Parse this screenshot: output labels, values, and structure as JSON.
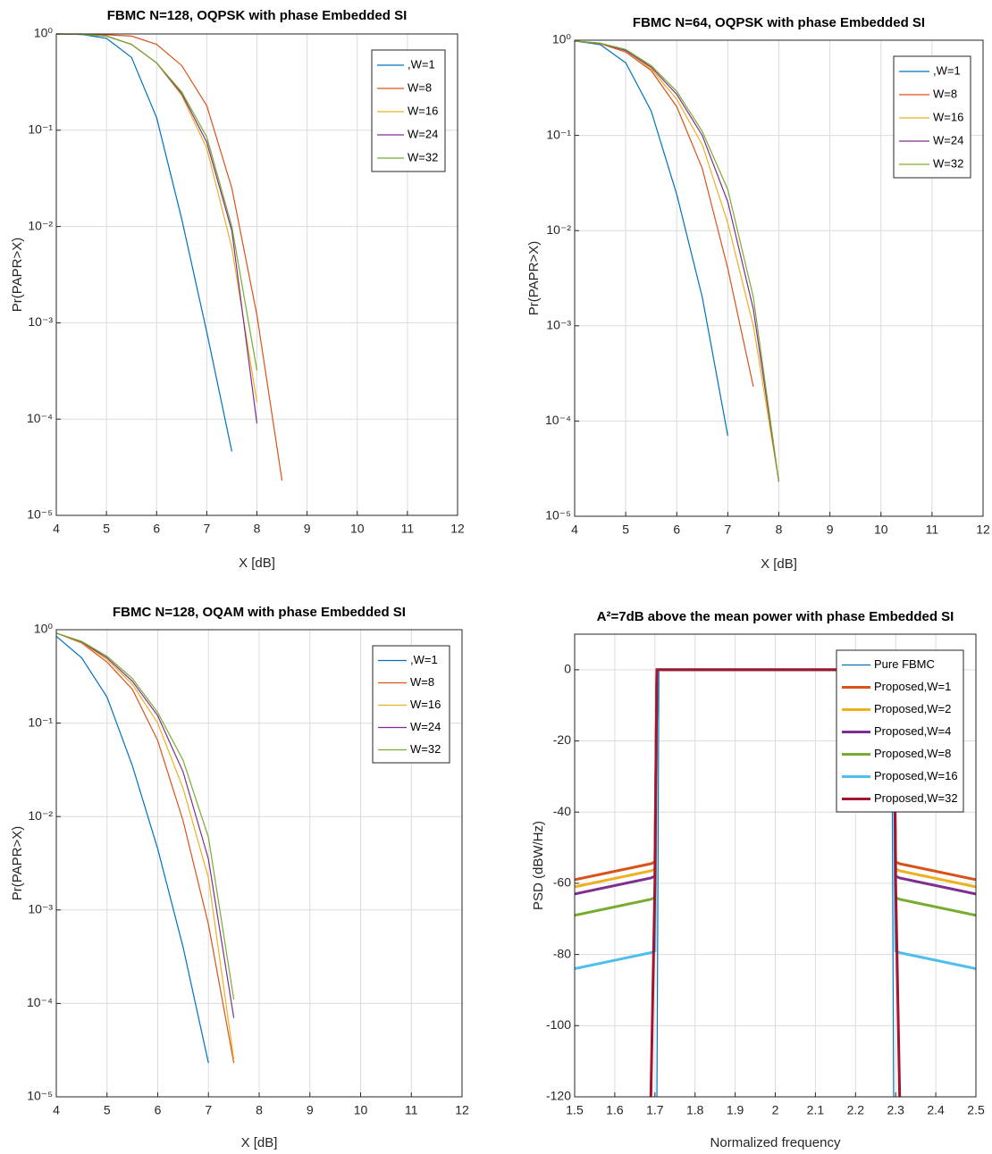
{
  "chart_data": [
    {
      "type": "line",
      "title": "FBMC N=128, OQPSK with phase Embedded SI",
      "xlabel": "X [dB]",
      "ylabel": "Pr(PAPR>X)",
      "x": [
        4,
        4.5,
        5,
        5.5,
        6,
        6.5,
        7,
        7.5,
        8,
        8.5
      ],
      "series": [
        {
          "name": ",W=1",
          "color": "#0072BD",
          "values": [
            1,
            0.99,
            0.9,
            0.57,
            0.135,
            0.012,
            0.0008,
            4.6e-05,
            null,
            null
          ]
        },
        {
          "name": "W=8",
          "color": "#D95319",
          "values": [
            1,
            1,
            0.98,
            0.95,
            0.78,
            0.47,
            0.18,
            0.025,
            0.0012,
            2.3e-05
          ]
        },
        {
          "name": "W=16",
          "color": "#EDB120",
          "values": [
            1,
            0.99,
            0.95,
            0.78,
            0.5,
            0.23,
            0.065,
            0.006,
            0.00015,
            null
          ]
        },
        {
          "name": "W=24",
          "color": "#7E2F8E",
          "values": [
            1,
            0.99,
            0.95,
            0.78,
            0.5,
            0.24,
            0.075,
            0.009,
            9e-05,
            null
          ]
        },
        {
          "name": "W=32",
          "color": "#77AC30",
          "values": [
            1,
            0.99,
            0.95,
            0.78,
            0.5,
            0.25,
            0.085,
            0.01,
            0.00032,
            null
          ]
        }
      ],
      "xlim": [
        4,
        12
      ],
      "xticks": [
        4,
        5,
        6,
        7,
        8,
        9,
        10,
        11,
        12
      ],
      "ylim": [
        1e-05,
        1
      ],
      "ylog": true,
      "yticks": [
        {
          "value": 1e-05,
          "label": "10⁻⁵"
        },
        {
          "value": 0.0001,
          "label": "10⁻⁴"
        },
        {
          "value": 0.001,
          "label": "10⁻³"
        },
        {
          "value": 0.01,
          "label": "10⁻²"
        },
        {
          "value": 0.1,
          "label": "10⁻¹"
        },
        {
          "value": 1,
          "label": "10⁰"
        }
      ],
      "grid": true,
      "legend": "upper right"
    },
    {
      "type": "line",
      "title": "FBMC N=64, OQPSK with phase Embedded SI",
      "xlabel": "X [dB]",
      "ylabel": "Pr(PAPR>X)",
      "x": [
        4,
        4.5,
        5,
        5.5,
        6,
        6.5,
        7,
        7.5,
        8
      ],
      "series": [
        {
          "name": ",W=1",
          "color": "#0072BD",
          "values": [
            0.98,
            0.9,
            0.58,
            0.18,
            0.024,
            0.002,
            7e-05,
            null,
            null
          ]
        },
        {
          "name": "W=8",
          "color": "#D95319",
          "values": [
            0.98,
            0.92,
            0.75,
            0.48,
            0.2,
            0.045,
            0.004,
            0.00023,
            null
          ]
        },
        {
          "name": "W=16",
          "color": "#EDB120",
          "values": [
            0.98,
            0.93,
            0.78,
            0.5,
            0.24,
            0.08,
            0.012,
            0.001,
            2.3e-05
          ]
        },
        {
          "name": "W=24",
          "color": "#7E2F8E",
          "values": [
            0.98,
            0.93,
            0.78,
            0.52,
            0.27,
            0.1,
            0.02,
            0.0015,
            2.3e-05
          ]
        },
        {
          "name": "W=32",
          "color": "#77AC30",
          "values": [
            0.98,
            0.93,
            0.8,
            0.54,
            0.29,
            0.11,
            0.027,
            0.002,
            2.3e-05
          ]
        }
      ],
      "xlim": [
        4,
        12
      ],
      "xticks": [
        4,
        5,
        6,
        7,
        8,
        9,
        10,
        11,
        12
      ],
      "ylim": [
        1e-05,
        1
      ],
      "ylog": true,
      "yticks": [
        {
          "value": 1e-05,
          "label": "10⁻⁵"
        },
        {
          "value": 0.0001,
          "label": "10⁻⁴"
        },
        {
          "value": 0.001,
          "label": "10⁻³"
        },
        {
          "value": 0.01,
          "label": "10⁻²"
        },
        {
          "value": 0.1,
          "label": "10⁻¹"
        },
        {
          "value": 1,
          "label": "10⁰"
        }
      ],
      "grid": true,
      "legend": "upper right"
    },
    {
      "type": "line",
      "title": "FBMC N=128, OQAM with phase Embedded SI",
      "xlabel": "X [dB]",
      "ylabel": "Pr(PAPR>X)",
      "x": [
        4,
        4.5,
        5,
        5.5,
        6,
        6.5,
        7,
        7.5
      ],
      "series": [
        {
          "name": ",W=1",
          "color": "#0072BD",
          "values": [
            0.85,
            0.5,
            0.19,
            0.035,
            0.0045,
            0.0004,
            2.3e-05,
            null
          ]
        },
        {
          "name": "W=8",
          "color": "#D95319",
          "values": [
            0.92,
            0.72,
            0.45,
            0.23,
            0.065,
            0.009,
            0.0007,
            2.3e-05
          ]
        },
        {
          "name": "W=16",
          "color": "#EDB120",
          "values": [
            0.92,
            0.73,
            0.48,
            0.26,
            0.1,
            0.02,
            0.0022,
            2.5e-05
          ]
        },
        {
          "name": "W=24",
          "color": "#7E2F8E",
          "values": [
            0.92,
            0.74,
            0.5,
            0.28,
            0.12,
            0.03,
            0.0035,
            7e-05
          ]
        },
        {
          "name": "W=32",
          "color": "#77AC30",
          "values": [
            0.92,
            0.75,
            0.52,
            0.3,
            0.13,
            0.04,
            0.006,
            0.00011
          ]
        }
      ],
      "xlim": [
        4,
        12
      ],
      "xticks": [
        4,
        5,
        6,
        7,
        8,
        9,
        10,
        11,
        12
      ],
      "ylim": [
        1e-05,
        1
      ],
      "ylog": true,
      "yticks": [
        {
          "value": 1e-05,
          "label": "10⁻⁵"
        },
        {
          "value": 0.0001,
          "label": "10⁻⁴"
        },
        {
          "value": 0.001,
          "label": "10⁻³"
        },
        {
          "value": 0.01,
          "label": "10⁻²"
        },
        {
          "value": 0.1,
          "label": "10⁻¹"
        },
        {
          "value": 1,
          "label": "10⁰"
        }
      ],
      "grid": true,
      "legend": "upper right"
    },
    {
      "type": "line",
      "title": "A²=7dB above the mean power with phase Embedded SI",
      "xlabel": "Normalized frequency",
      "ylabel": "PSD (dBW/Hz)",
      "x": [
        1.5,
        1.69,
        1.7,
        1.705,
        1.71,
        2.29,
        2.295,
        2.3,
        2.31,
        2.5
      ],
      "series": [
        {
          "name": "Pure FBMC",
          "color": "#0072BD",
          "values": [
            null,
            null,
            null,
            -120,
            0,
            0,
            -120,
            null,
            null,
            null
          ]
        },
        {
          "name": "Proposed,W=1",
          "color": "#D95319",
          "values": [
            -59,
            -54.5,
            -54,
            0,
            0,
            0,
            0,
            -54,
            -54.5,
            -59
          ]
        },
        {
          "name": "Proposed,W=2",
          "color": "#EDB120",
          "values": [
            -61,
            -56.5,
            -56,
            0,
            0,
            0,
            0,
            -56,
            -56.5,
            -61
          ]
        },
        {
          "name": "Proposed,W=4",
          "color": "#7E2F8E",
          "values": [
            -63,
            -58.5,
            -58,
            0,
            0,
            0,
            0,
            -58,
            -58.5,
            -63
          ]
        },
        {
          "name": "Proposed,W=8",
          "color": "#77AC30",
          "values": [
            -69,
            -64.5,
            -64,
            0,
            0,
            0,
            0,
            -64,
            -64.5,
            -69
          ]
        },
        {
          "name": "Proposed,W=16",
          "color": "#4DBEEE",
          "values": [
            -84,
            -79.5,
            -79,
            0,
            0,
            0,
            0,
            -79,
            -79.5,
            -84
          ]
        },
        {
          "name": "Proposed,W=32",
          "color": "#A2142F",
          "values": [
            null,
            -120,
            -60,
            0,
            0,
            0,
            0,
            -60,
            -120,
            null
          ]
        }
      ],
      "xlim": [
        1.5,
        2.5
      ],
      "xticks": [
        1.5,
        1.6,
        1.7,
        1.8,
        1.9,
        2,
        2.1,
        2.2,
        2.3,
        2.4,
        2.5
      ],
      "ylim": [
        -120,
        10
      ],
      "yticks": [
        -120,
        -100,
        -80,
        -60,
        -40,
        -20,
        0
      ],
      "grid": true,
      "legend": "upper right"
    }
  ]
}
